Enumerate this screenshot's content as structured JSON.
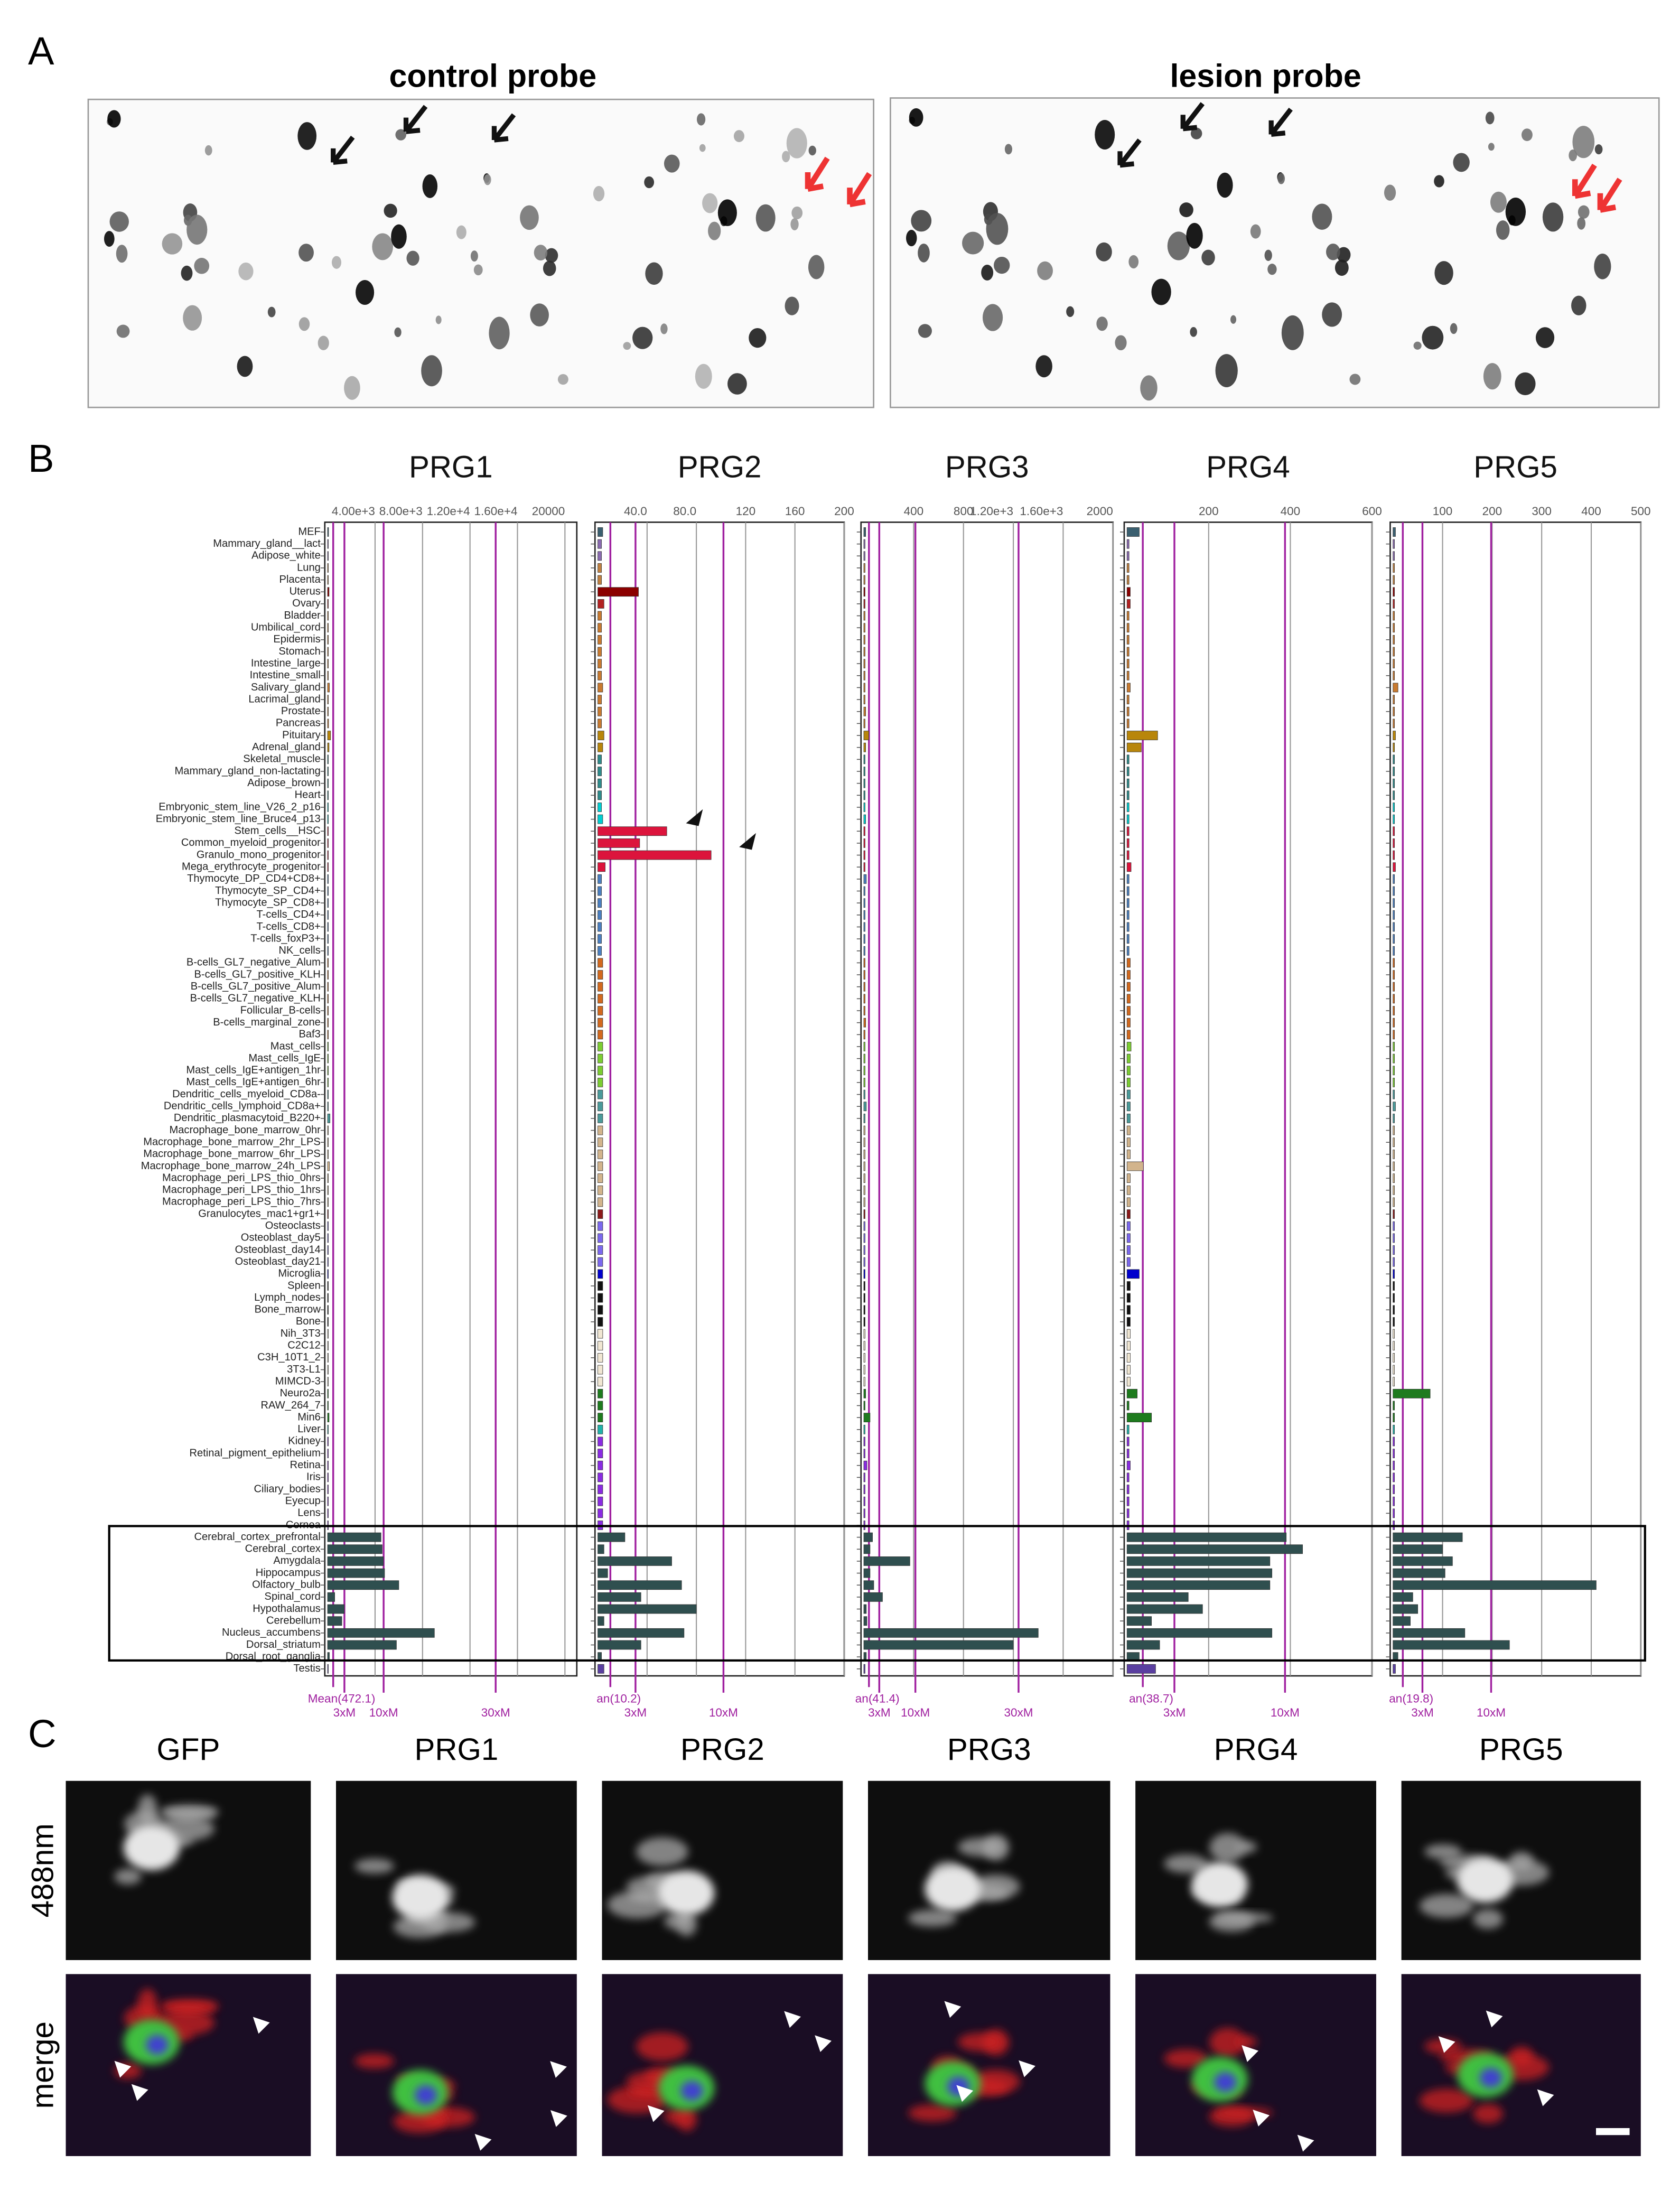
{
  "panel_labels": [
    "A",
    "B",
    "C"
  ],
  "panel_a": {
    "titles": [
      "control probe",
      "lesion probe"
    ]
  },
  "panel_c": {
    "columns": [
      "GFP",
      "PRG1",
      "PRG2",
      "PRG3",
      "PRG4",
      "PRG5"
    ],
    "rows": [
      "488nm",
      "merge"
    ]
  },
  "chart_data": [
    {
      "type": "hbar",
      "title": "PRG1",
      "categories": [
        "MEF",
        "Mammary_gland__lact",
        "Adipose_white",
        "Lung",
        "Placenta",
        "Uterus",
        "Ovary",
        "Bladder",
        "Umbilical_cord",
        "Epidermis",
        "Stomach",
        "Intestine_large",
        "Intestine_small",
        "Salivary_gland",
        "Lacrimal_gland",
        "Prostate",
        "Pancreas",
        "Pituitary",
        "Adrenal_gland",
        "Skeletal_muscle",
        "Mammary_gland_non-lactating",
        "Adipose_brown",
        "Heart",
        "Embryonic_stem_line_V26_2_p16",
        "Embryonic_stem_line_Bruce4_p13",
        "Stem_cells__HSC",
        "Common_myeloid_progenitor",
        "Granulo_mono_progenitor",
        "Mega_erythrocyte_progenitor",
        "Thymocyte_DP_CD4+CD8+",
        "Thymocyte_SP_CD4+",
        "Thymocyte_SP_CD8+",
        "T-cells_CD4+",
        "T-cells_CD8+",
        "T-cells_foxP3+",
        "NK_cells",
        "B-cells_GL7_negative_Alum",
        "B-cells_GL7_positive_KLH",
        "B-cells_GL7_positive_Alum",
        "B-cells_GL7_negative_KLH",
        "Follicular_B-cells",
        "B-cells_marginal_zone",
        "Baf3",
        "Mast_cells",
        "Mast_cells_IgE",
        "Mast_cells_IgE+antigen_1hr",
        "Mast_cells_IgE+antigen_6hr",
        "Dendritic_cells_myeloid_CD8a-",
        "Dendritic_cells_lymphoid_CD8a+",
        "Dendritic_plasmacytoid_B220+",
        "Macrophage_bone_marrow_0hr",
        "Macrophage_bone_marrow_2hr_LPS",
        "Macrophage_bone_marrow_6hr_LPS",
        "Macrophage_bone_marrow_24h_LPS",
        "Macrophage_peri_LPS_thio_0hrs",
        "Macrophage_peri_LPS_thio_1hrs",
        "Macrophage_peri_LPS_thio_7hrs",
        "Granulocytes_mac1+gr1+",
        "Osteoclasts",
        "Osteoblast_day5",
        "Osteoblast_day14",
        "Osteoblast_day21",
        "Microglia",
        "Spleen",
        "Lymph_nodes",
        "Bone_marrow",
        "Bone",
        "Nih_3T3",
        "C2C12",
        "C3H_10T1_2",
        "3T3-L1",
        "MIMCD-3",
        "Neuro2a",
        "RAW_264_7",
        "Min6",
        "Liver",
        "Kidney",
        "Retinal_pigment_epithelium",
        "Retina",
        "Iris",
        "Ciliary_bodies",
        "Eyecup",
        "Lens",
        "Cornea",
        "Cerebral_cortex_prefrontal",
        "Cerebral_cortex",
        "Amygdala",
        "Hippocampus",
        "Olfactory_bulb",
        "Spinal_cord",
        "Hypothalamus",
        "Cerebellum",
        "Nucleus_accumbens",
        "Dorsal_striatum",
        "Dorsal_root_ganglia",
        "Testis"
      ],
      "colors": [
        "#3a5f6f",
        "#8a6bb0",
        "#8a6bb0",
        "#c08040",
        "#c08040",
        "#8b0000",
        "#b22222",
        "#c87a30",
        "#c87a30",
        "#c87a30",
        "#c87a30",
        "#c87a30",
        "#c87a30",
        "#c87a30",
        "#c87a30",
        "#c87a30",
        "#c87a30",
        "#b8860b",
        "#b8860b",
        "#2e8b8b",
        "#2e8b8b",
        "#2e8b8b",
        "#2e8b8b",
        "#00ced1",
        "#00ced1",
        "#dc143c",
        "#dc143c",
        "#dc143c",
        "#dc143c",
        "#4a7fc0",
        "#4a7fc0",
        "#4a7fc0",
        "#4a7fc0",
        "#4a7fc0",
        "#4a7fc0",
        "#4a7fc0",
        "#d2691e",
        "#d2691e",
        "#d2691e",
        "#d2691e",
        "#d2691e",
        "#d2691e",
        "#d2691e",
        "#7ccd32",
        "#7ccd32",
        "#7ccd32",
        "#7ccd32",
        "#4a9a9a",
        "#4a9a9a",
        "#4a9a9a",
        "#d2b48c",
        "#d2b48c",
        "#d2b48c",
        "#d2b48c",
        "#d2b48c",
        "#d2b48c",
        "#d2b48c",
        "#8b1a1a",
        "#7b68ee",
        "#7b68ee",
        "#7b68ee",
        "#7b68ee",
        "#0000cd",
        "#111111",
        "#111111",
        "#111111",
        "#111111",
        "#f0e6d2",
        "#f0e6d2",
        "#f0e6d2",
        "#f0e6d2",
        "#f0e6d2",
        "#1e7b1e",
        "#1e7b1e",
        "#1e7b1e",
        "#20b2aa",
        "#8a2be2",
        "#8a2be2",
        "#8a2be2",
        "#8a2be2",
        "#8a2be2",
        "#8a2be2",
        "#8a2be2",
        "#8a2be2",
        "#2f4f4f",
        "#2f4f4f",
        "#2f4f4f",
        "#2f4f4f",
        "#2f4f4f",
        "#2f4f4f",
        "#2f4f4f",
        "#2f4f4f",
        "#2f4f4f",
        "#2f4f4f",
        "#2f4f4f",
        "#5a3fa0"
      ],
      "values": [
        80,
        60,
        60,
        60,
        60,
        120,
        60,
        60,
        60,
        60,
        60,
        60,
        60,
        150,
        60,
        60,
        80,
        250,
        120,
        60,
        60,
        60,
        60,
        60,
        60,
        60,
        60,
        60,
        60,
        60,
        60,
        60,
        60,
        60,
        60,
        60,
        60,
        60,
        60,
        60,
        60,
        60,
        60,
        60,
        60,
        60,
        60,
        60,
        60,
        200,
        60,
        60,
        60,
        150,
        60,
        60,
        60,
        60,
        60,
        60,
        60,
        60,
        60,
        60,
        60,
        60,
        60,
        60,
        60,
        60,
        60,
        60,
        60,
        60,
        120,
        60,
        60,
        60,
        60,
        60,
        60,
        60,
        60,
        60,
        4500,
        4600,
        4700,
        4800,
        6000,
        600,
        1400,
        1200,
        9000,
        5800,
        150,
        60
      ],
      "xlim": [
        0,
        21000
      ],
      "xticks": [
        {
          "value": 4000,
          "label": "4.00e+3"
        },
        {
          "value": 8000,
          "label": "8.00e+3"
        },
        {
          "value": 12000,
          "label": "1.20e+4"
        },
        {
          "value": 16000,
          "label": "1.60e+4"
        },
        20000
      ],
      "mean": {
        "value": 472.1,
        "label": "Mean(472.1)"
      },
      "multiples": [
        {
          "factor": 3,
          "label": "3xM"
        },
        {
          "factor": 10,
          "label": "10xM"
        },
        {
          "factor": 30,
          "label": "30xM"
        }
      ]
    },
    {
      "type": "hbar",
      "title": "PRG2",
      "values": [
        4,
        3,
        3,
        3,
        3,
        33,
        5,
        3,
        3,
        3,
        3,
        3,
        3,
        4,
        3,
        3,
        3,
        5,
        4,
        3,
        3,
        3,
        3,
        3,
        4,
        56,
        34,
        92,
        6,
        3,
        3,
        3,
        3,
        3,
        3,
        3,
        4,
        4,
        4,
        4,
        4,
        4,
        4,
        4,
        4,
        4,
        4,
        4,
        4,
        4,
        4,
        4,
        4,
        4,
        4,
        4,
        4,
        4,
        4,
        4,
        4,
        4,
        4,
        4,
        4,
        4,
        4,
        4,
        4,
        4,
        4,
        4,
        4,
        4,
        4,
        4,
        4,
        4,
        4,
        4,
        4,
        4,
        4,
        4,
        22,
        5,
        60,
        8,
        68,
        35,
        80,
        5,
        70,
        35,
        3,
        5
      ],
      "xlim": [
        0,
        200
      ],
      "xticks": [
        {
          "value": 40,
          "label": "40.0"
        },
        {
          "value": 80,
          "label": "80.0"
        },
        120,
        160,
        200
      ],
      "mean": {
        "value": 10.2,
        "label": "an(10.2)"
      },
      "multiples": [
        {
          "factor": 3,
          "label": "3xM"
        },
        {
          "factor": 10,
          "label": "10xM"
        }
      ]
    },
    {
      "type": "hbar",
      "title": "PRG3",
      "values": [
        15,
        10,
        10,
        10,
        10,
        10,
        10,
        10,
        10,
        10,
        10,
        10,
        10,
        10,
        10,
        15,
        10,
        40,
        15,
        10,
        10,
        10,
        10,
        10,
        15,
        10,
        10,
        10,
        10,
        20,
        10,
        10,
        10,
        10,
        10,
        10,
        10,
        10,
        10,
        10,
        10,
        15,
        10,
        10,
        10,
        10,
        10,
        10,
        20,
        10,
        10,
        10,
        10,
        10,
        10,
        10,
        10,
        10,
        10,
        10,
        10,
        10,
        10,
        10,
        10,
        10,
        10,
        10,
        10,
        10,
        10,
        10,
        15,
        10,
        50,
        10,
        10,
        10,
        25,
        10,
        10,
        10,
        10,
        10,
        70,
        50,
        370,
        50,
        80,
        150,
        20,
        25,
        1400,
        1200,
        20,
        10
      ],
      "xlim": [
        0,
        2000
      ],
      "xticks": [
        400,
        800,
        {
          "value": 1200,
          "label": "1.20e+3"
        },
        {
          "value": 1600,
          "label": "1.60e+3"
        },
        2000
      ],
      "mean": {
        "value": 41.4,
        "label": "an(41.4)"
      },
      "multiples": [
        {
          "factor": 3,
          "label": "3xM"
        },
        {
          "factor": 10,
          "label": "10xM"
        },
        {
          "factor": 30,
          "label": "30xM"
        }
      ]
    },
    {
      "type": "hbar",
      "title": "PRG4",
      "values": [
        30,
        5,
        5,
        5,
        5,
        8,
        8,
        5,
        5,
        5,
        5,
        5,
        5,
        8,
        5,
        5,
        5,
        75,
        35,
        5,
        5,
        5,
        5,
        5,
        5,
        5,
        5,
        5,
        10,
        5,
        5,
        5,
        5,
        5,
        5,
        5,
        8,
        8,
        8,
        8,
        8,
        8,
        8,
        10,
        8,
        8,
        8,
        8,
        8,
        8,
        8,
        8,
        8,
        40,
        8,
        8,
        8,
        8,
        8,
        8,
        8,
        8,
        30,
        8,
        8,
        8,
        8,
        8,
        8,
        8,
        8,
        8,
        25,
        5,
        60,
        5,
        5,
        5,
        8,
        5,
        5,
        5,
        5,
        5,
        390,
        430,
        350,
        355,
        350,
        150,
        185,
        60,
        355,
        80,
        30,
        70
      ],
      "xlim": [
        0,
        600
      ],
      "xticks": [
        200,
        400,
        600
      ],
      "mean": {
        "value": 38.7,
        "label": "an(38.7)"
      },
      "multiples": [
        {
          "factor": 3,
          "label": "3xM"
        },
        {
          "factor": 10,
          "label": "10xM"
        }
      ]
    },
    {
      "type": "hbar",
      "title": "PRG5",
      "values": [
        5,
        3,
        3,
        3,
        3,
        3,
        3,
        3,
        3,
        3,
        3,
        3,
        3,
        10,
        3,
        3,
        3,
        5,
        3,
        3,
        3,
        3,
        3,
        3,
        3,
        3,
        3,
        3,
        5,
        3,
        3,
        3,
        3,
        3,
        3,
        3,
        3,
        3,
        3,
        3,
        3,
        3,
        3,
        3,
        3,
        3,
        3,
        3,
        5,
        3,
        3,
        3,
        3,
        3,
        3,
        3,
        3,
        3,
        3,
        3,
        3,
        3,
        3,
        3,
        3,
        3,
        3,
        3,
        3,
        3,
        3,
        3,
        75,
        3,
        3,
        3,
        3,
        3,
        3,
        3,
        3,
        3,
        3,
        3,
        140,
        100,
        120,
        105,
        410,
        40,
        50,
        35,
        145,
        235,
        10,
        5
      ],
      "xlim": [
        0,
        500
      ],
      "xticks": [
        100,
        200,
        300,
        400,
        500
      ],
      "mean": {
        "value": 19.8,
        "label": "an(19.8)"
      },
      "multiples": [
        {
          "factor": 3,
          "label": "3xM"
        },
        {
          "factor": 10,
          "label": "10xM"
        }
      ]
    }
  ]
}
